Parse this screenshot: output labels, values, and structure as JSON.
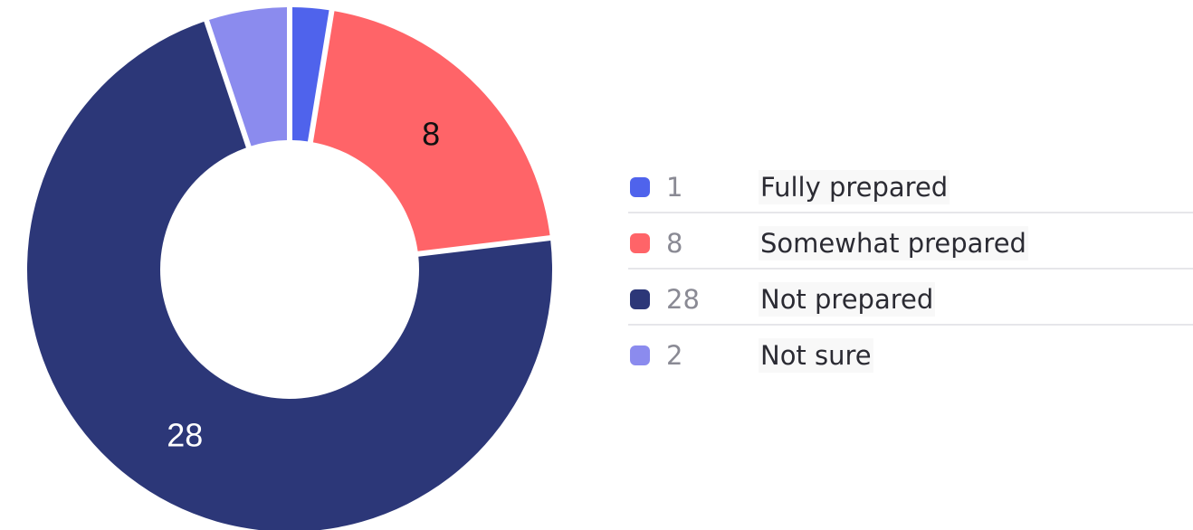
{
  "chart_data": {
    "type": "pie",
    "style": "donut",
    "categories": [
      "Fully prepared",
      "Somewhat prepared",
      "Not prepared",
      "Not sure"
    ],
    "values": [
      1,
      8,
      28,
      2
    ],
    "colors": [
      "#4f63ec",
      "#ff6468",
      "#2c3778",
      "#8b8bee"
    ],
    "slice_labels": [
      {
        "text": "",
        "color": "#ffffff"
      },
      {
        "text": "8",
        "color": "#111111"
      },
      {
        "text": "28",
        "color": "#ffffff"
      },
      {
        "text": "",
        "color": "#ffffff"
      }
    ],
    "legend_placement": "right"
  },
  "legend": {
    "items": [
      {
        "value": "1",
        "label": "Fully prepared",
        "color": "#4f63ec"
      },
      {
        "value": "8",
        "label": "Somewhat prepared",
        "color": "#ff6468"
      },
      {
        "value": "28",
        "label": "Not prepared",
        "color": "#2c3778"
      },
      {
        "value": "2",
        "label": "Not sure",
        "color": "#8b8bee"
      }
    ]
  }
}
